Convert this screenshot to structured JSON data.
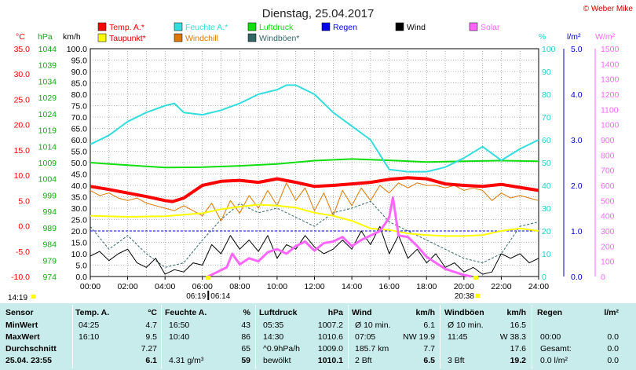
{
  "title": "Dienstag, 25.04.2017",
  "copyright": "© Weber Mike",
  "legend": [
    {
      "label": "Temp. A.*",
      "color": "#ff0000"
    },
    {
      "label": "Feuchte A.*",
      "color": "#33dddd"
    },
    {
      "label": "Luftdruck",
      "color": "#11dd11"
    },
    {
      "label": "Regen",
      "color": "#0000ee"
    },
    {
      "label": "Wind",
      "color": "#000000"
    },
    {
      "label": "Solar",
      "color": "#ff66ff"
    },
    {
      "label": "Taupunkt*",
      "color": "#ffff00"
    },
    {
      "label": "Windchill",
      "color": "#dd7700"
    },
    {
      "label": "Windböen*",
      "color": "#336666"
    }
  ],
  "axis_units": {
    "temp": "°C",
    "pressure": "hPa",
    "wind": "km/h",
    "humidity": "%",
    "rain": "l/m²",
    "solar": "W/m²"
  },
  "sun_times": {
    "sunrise": "06:19",
    "sunset": "20:38",
    "sunrise_left": "06:19",
    "sunrise_right": "06:14",
    "now": "14:19"
  },
  "chart_data": {
    "type": "line",
    "xlabel": "",
    "x_ticks": [
      "00:00",
      "02:00",
      "04:00",
      "06:00",
      "08:00",
      "10:00",
      "12:00",
      "14:00",
      "16:00",
      "18:00",
      "20:00",
      "22:00",
      "24:00"
    ],
    "x_range": [
      0,
      24
    ],
    "axes": {
      "temp": {
        "min": -10,
        "max": 35,
        "ticks": [
          "35.0",
          "30.0",
          "25.0",
          "20.0",
          "15.0",
          "10.0",
          "5.0",
          "0.0",
          "-5.0",
          "-10.0"
        ],
        "color": "#ff0000"
      },
      "pressure": {
        "min": 974,
        "max": 1044,
        "ticks": [
          "1044",
          "1039",
          "1034",
          "1029",
          "1024",
          "1019",
          "1014",
          "1009",
          "1004",
          "999",
          "994",
          "989",
          "984",
          "979",
          "974"
        ],
        "color": "#11aa11"
      },
      "wind": {
        "min": 0,
        "max": 100,
        "ticks": [
          "100.0",
          "95.0",
          "90.0",
          "85.0",
          "80.0",
          "75.0",
          "70.0",
          "65.0",
          "60.0",
          "55.0",
          "50.0",
          "45.0",
          "40.0",
          "35.0",
          "30.0",
          "25.0",
          "20.0",
          "15.0",
          "10.0",
          "5.0",
          "0.0"
        ],
        "color": "#000000"
      },
      "humidity": {
        "min": 0,
        "max": 100,
        "ticks": [
          "100",
          "90",
          "80",
          "70",
          "60",
          "50",
          "40",
          "30",
          "20",
          "10",
          "0"
        ],
        "color": "#22cccc"
      },
      "rain": {
        "min": 0,
        "max": 5,
        "ticks": [
          "5.0",
          "4.0",
          "3.0",
          "2.0",
          "1.0",
          "0.0"
        ],
        "color": "#0000cc"
      },
      "solar": {
        "min": 0,
        "max": 1500,
        "ticks": [
          "1500",
          "1400",
          "1300",
          "1200",
          "1100",
          "1000",
          "900",
          "800",
          "700",
          "600",
          "500",
          "400",
          "300",
          "200",
          "100",
          "0"
        ],
        "color": "#ff66ff"
      }
    },
    "series": [
      {
        "name": "Temp. A.*",
        "axis": "temp",
        "color": "#ff0000",
        "width": 4,
        "x": [
          0,
          1,
          2,
          3,
          4,
          4.4,
          5,
          6,
          7,
          8,
          9,
          10,
          11,
          12,
          13,
          14,
          15,
          16,
          17,
          18,
          19,
          20,
          21,
          22,
          23,
          24
        ],
        "y": [
          7.8,
          7.2,
          6.5,
          5.8,
          5.0,
          4.8,
          5.5,
          8.0,
          8.8,
          9.0,
          8.6,
          9.3,
          8.6,
          7.8,
          8.0,
          8.3,
          8.6,
          9.2,
          9.5,
          9.3,
          8.3,
          8.0,
          7.8,
          8.2,
          7.6,
          7.0
        ]
      },
      {
        "name": "Feuchte A.*",
        "axis": "humidity",
        "color": "#33dddd",
        "width": 2,
        "x": [
          0,
          1,
          2,
          3,
          4,
          4.5,
          5,
          6,
          7,
          8,
          9,
          10,
          10.5,
          11,
          12,
          13,
          14,
          15,
          16,
          17,
          18,
          19,
          20,
          21,
          22,
          23,
          24
        ],
        "y": [
          58,
          62,
          68,
          72,
          75,
          76,
          72,
          71,
          73,
          76,
          80,
          82,
          84,
          84,
          80,
          72,
          66,
          60,
          47,
          46,
          46,
          48,
          52,
          57,
          51,
          56,
          60
        ]
      },
      {
        "name": "Luftdruck",
        "axis": "pressure",
        "color": "#11dd11",
        "width": 2,
        "x": [
          0,
          2,
          4,
          6,
          8,
          10,
          12,
          14,
          16,
          18,
          20,
          22,
          24
        ],
        "y": [
          1009.0,
          1008.2,
          1007.5,
          1007.6,
          1008.0,
          1008.6,
          1009.6,
          1010.1,
          1009.7,
          1009.2,
          1009.4,
          1009.6,
          1009.4
        ]
      },
      {
        "name": "Taupunkt*",
        "axis": "temp",
        "color": "#ffff00",
        "width": 2,
        "x": [
          0,
          2,
          4,
          6,
          7,
          8,
          9,
          10,
          11,
          12,
          13,
          14,
          15,
          16,
          17,
          18,
          19,
          20,
          21,
          22,
          23,
          24
        ],
        "y": [
          2.0,
          1.8,
          1.9,
          2.5,
          3.3,
          3.8,
          4.2,
          4.0,
          3.6,
          2.6,
          2.0,
          1.0,
          -0.5,
          -0.8,
          -1.5,
          -1.8,
          -2.0,
          -2.0,
          -1.8,
          -1.0,
          -0.5,
          -1.0
        ]
      },
      {
        "name": "Windchill",
        "axis": "temp",
        "color": "#dd7700",
        "width": 1,
        "x": [
          0,
          0.5,
          1,
          1.5,
          2,
          2.5,
          3,
          3.5,
          4,
          4.5,
          5,
          5.5,
          6,
          6.5,
          7,
          7.5,
          8,
          8.5,
          9,
          9.5,
          10,
          10.5,
          11,
          11.5,
          12,
          12.5,
          13,
          13.5,
          14,
          14.5,
          15,
          15.5,
          16,
          16.5,
          17,
          17.5,
          18,
          18.5,
          19,
          19.5,
          20,
          20.5,
          21,
          21.5,
          22,
          22.5,
          23,
          23.5,
          24
        ],
        "y": [
          7.0,
          6.0,
          6.5,
          5.5,
          5.0,
          5.5,
          4.5,
          4.0,
          3.5,
          3.0,
          4.0,
          3.0,
          2.0,
          4.5,
          1.0,
          5.0,
          2.5,
          6.0,
          3.5,
          7.0,
          4.0,
          8.5,
          5.0,
          7.5,
          3.0,
          6.5,
          2.0,
          7.0,
          4.0,
          7.5,
          5.0,
          8.0,
          6.5,
          8.5,
          7.5,
          8.5,
          8.0,
          8.0,
          7.5,
          8.0,
          7.0,
          7.5,
          7.0,
          5.0,
          6.5,
          5.5,
          6.0,
          5.5,
          5.0
        ]
      },
      {
        "name": "Wind",
        "axis": "wind",
        "color": "#000000",
        "width": 1,
        "x": [
          0,
          0.5,
          1,
          1.5,
          2,
          2.5,
          3,
          3.5,
          4,
          4.5,
          5,
          5.5,
          6,
          6.5,
          7,
          7.5,
          8,
          8.5,
          9,
          9.5,
          10,
          10.5,
          11,
          11.5,
          12,
          12.5,
          13,
          13.5,
          14,
          14.5,
          15,
          15.5,
          16,
          16.5,
          17,
          17.5,
          18,
          18.5,
          19,
          19.5,
          20,
          20.5,
          21,
          21.5,
          22,
          22.5,
          23,
          23.5,
          24
        ],
        "y": [
          9,
          11,
          7,
          10,
          12,
          6,
          4,
          8,
          1,
          3,
          2,
          6,
          5,
          14,
          10,
          18,
          12,
          16,
          11,
          18,
          8,
          14,
          12,
          18,
          13,
          10,
          12,
          16,
          12,
          20,
          14,
          22,
          10,
          18,
          8,
          12,
          6,
          10,
          4,
          6,
          2,
          4,
          1,
          2,
          10,
          8,
          10,
          6,
          8
        ]
      },
      {
        "name": "Windböen*",
        "axis": "wind",
        "color": "#336666",
        "width": 1,
        "dash": "3,2",
        "x": [
          0,
          1,
          2,
          3,
          4,
          5,
          6,
          7,
          8,
          9,
          10,
          11,
          12,
          13,
          14,
          15,
          16,
          17,
          18,
          19,
          20,
          21,
          22,
          23,
          24
        ],
        "y": [
          22,
          12,
          18,
          10,
          4,
          6,
          16,
          25,
          32,
          28,
          30,
          26,
          22,
          28,
          30,
          33,
          24,
          20,
          16,
          12,
          8,
          6,
          10,
          22,
          24
        ]
      },
      {
        "name": "Solar",
        "axis": "solar",
        "color": "#ff66ff",
        "width": 3,
        "x": [
          6.3,
          6.8,
          7.3,
          7.6,
          8,
          8.5,
          9,
          9.5,
          10,
          10.5,
          11,
          11.5,
          12,
          12.5,
          13,
          13.5,
          14,
          14.5,
          15,
          15.5,
          15.8,
          16,
          16.2,
          16.5,
          17,
          17.5,
          18,
          18.5,
          19,
          19.5,
          20,
          20.4
        ],
        "y": [
          0,
          30,
          60,
          150,
          80,
          120,
          100,
          160,
          180,
          150,
          200,
          230,
          170,
          220,
          230,
          260,
          200,
          240,
          270,
          300,
          350,
          390,
          520,
          270,
          260,
          200,
          130,
          90,
          50,
          30,
          10,
          0
        ]
      }
    ],
    "rain_line": {
      "value": 1.0,
      "color": "#0000ff"
    }
  },
  "stats": {
    "headers": {
      "sensor": "Sensor",
      "temp": "Temp. A.",
      "temp_unit": "°C",
      "hum": "Feuchte A.",
      "hum_unit": "%",
      "press": "Luftdruck",
      "press_unit": "hPa",
      "wind": "Wind",
      "wind_unit": "km/h",
      "gust": "Windböen",
      "gust_unit": "km/h",
      "rain": "Regen",
      "rain_unit": "l/m²"
    },
    "rows": [
      {
        "label": "MinWert",
        "temp_t": "04:25",
        "temp_v": "4.7",
        "hum_t": "16:50",
        "hum_v": "43",
        "press_t": "05:35",
        "press_v": "1007.2",
        "wind_t": "Ø 10 min.",
        "wind_v": "6.1",
        "gust_t": "Ø 10 min.",
        "gust_v": "16.5",
        "rain_t": "",
        "rain_v": ""
      },
      {
        "label": "MaxWert",
        "temp_t": "16:10",
        "temp_v": "9.5",
        "hum_t": "10:40",
        "hum_v": "86",
        "press_t": "14:30",
        "press_v": "1010.6",
        "wind_t": "07:05",
        "wind_v": "NW 19.9",
        "gust_t": "11:45",
        "gust_v": "W 38.3",
        "rain_t": "00:00",
        "rain_v": "0.0"
      },
      {
        "label": "Durchschnitt",
        "temp_t": "",
        "temp_v": "7.27",
        "hum_t": "",
        "hum_v": "65",
        "press_t": "^0.9hPa/h",
        "press_v": "1009.0",
        "wind_t": "185.7 km",
        "wind_v": "7.7",
        "gust_t": "",
        "gust_v": "17.6",
        "rain_t": "Gesamt:",
        "rain_v": "0.0"
      },
      {
        "label": "25.04. 23:55",
        "temp_t": "",
        "temp_v": "6.1",
        "hum_t": "4.31 g/m³",
        "hum_v": "59",
        "press_t": "bewölkt",
        "press_v": "1010.1",
        "wind_t": "2 Bft",
        "wind_v": "6.5",
        "gust_t": "3 Bft",
        "gust_v": "19.2",
        "rain_t": "0.0 l/m²",
        "rain_v": "0.0"
      }
    ]
  }
}
